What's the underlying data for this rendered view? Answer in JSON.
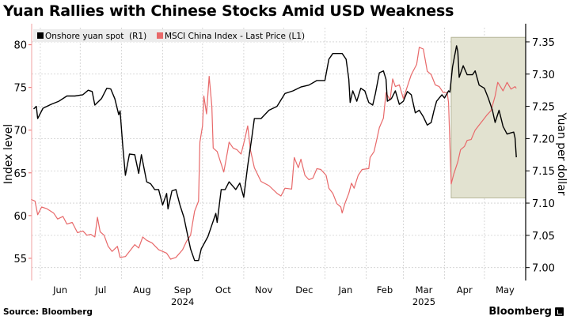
{
  "chart_data": {
    "type": "line",
    "title": "Yuan Rallies with Chinese Stocks Amid USD Weakness",
    "x_unit": "days since 2024-06-01",
    "xlim": [
      -6.5,
      365
    ],
    "y_left": {
      "label": "Index level",
      "lim": [
        52.4,
        82.0
      ],
      "ticks": [
        55,
        60,
        65,
        70,
        75,
        80
      ]
    },
    "y_right": {
      "label": "Yuan per dollar",
      "lim": [
        6.98,
        7.372
      ],
      "ticks": [
        "7.00",
        "7.05",
        "7.10",
        "7.15",
        "7.20",
        "7.25",
        "7.30",
        "7.35"
      ]
    },
    "x_ticks": [
      {
        "label": "Jun",
        "start": 0,
        "end": 30
      },
      {
        "label": "Jul",
        "start": 30,
        "end": 61
      },
      {
        "label": "Aug",
        "start": 61,
        "end": 92
      },
      {
        "label": "Sep",
        "start": 92,
        "end": 122
      },
      {
        "label": "Oct",
        "start": 122,
        "end": 153
      },
      {
        "label": "Nov",
        "start": 153,
        "end": 183
      },
      {
        "label": "Dec",
        "start": 183,
        "end": 214
      },
      {
        "label": "Jan",
        "start": 214,
        "end": 245
      },
      {
        "label": "Feb",
        "start": 245,
        "end": 273
      },
      {
        "label": "Mar",
        "start": 273,
        "end": 304
      },
      {
        "label": "Apr",
        "start": 304,
        "end": 334
      },
      {
        "label": "May",
        "start": 334,
        "end": 365
      }
    ],
    "year_labels": [
      {
        "label": "2024",
        "at": 107
      },
      {
        "label": "2025",
        "at": 288.5
      }
    ],
    "grid": true,
    "legend": {
      "placement": "top-left"
    },
    "highlight": {
      "x_from": 309,
      "x_to": 365,
      "y_right_from": 7.108,
      "y_right_to": 7.357,
      "color": "#e2e2d0"
    },
    "series": [
      {
        "name": "Onshore yuan spot  (R1)",
        "axis": "right",
        "color": "#000000",
        "points": [
          [
            -5,
            7.246
          ],
          [
            -3,
            7.25
          ],
          [
            -2,
            7.231
          ],
          [
            2,
            7.247
          ],
          [
            8,
            7.253
          ],
          [
            14,
            7.258
          ],
          [
            20,
            7.266
          ],
          [
            26,
            7.266
          ],
          [
            32,
            7.268
          ],
          [
            36,
            7.275
          ],
          [
            39,
            7.273
          ],
          [
            41,
            7.252
          ],
          [
            46,
            7.262
          ],
          [
            50,
            7.278
          ],
          [
            53,
            7.277
          ],
          [
            56,
            7.262
          ],
          [
            59,
            7.237
          ],
          [
            60,
            7.243
          ],
          [
            62,
            7.188
          ],
          [
            64,
            7.143
          ],
          [
            67,
            7.176
          ],
          [
            71,
            7.175
          ],
          [
            74,
            7.146
          ],
          [
            76,
            7.175
          ],
          [
            80,
            7.133
          ],
          [
            83,
            7.13
          ],
          [
            86,
            7.121
          ],
          [
            89,
            7.121
          ],
          [
            92,
            7.097
          ],
          [
            95,
            7.115
          ],
          [
            96,
            7.091
          ],
          [
            99,
            7.119
          ],
          [
            102,
            7.121
          ],
          [
            105,
            7.097
          ],
          [
            108,
            7.078
          ],
          [
            111,
            7.048
          ],
          [
            113,
            7.029
          ],
          [
            116,
            7.011
          ],
          [
            119,
            7.011
          ],
          [
            121,
            7.029
          ],
          [
            126,
            7.048
          ],
          [
            129,
            7.066
          ],
          [
            132,
            7.084
          ],
          [
            133,
            7.07
          ],
          [
            136,
            7.121
          ],
          [
            139,
            7.121
          ],
          [
            142,
            7.133
          ],
          [
            147,
            7.121
          ],
          [
            150,
            7.131
          ],
          [
            153,
            7.109
          ],
          [
            156,
            7.158
          ],
          [
            159,
            7.201
          ],
          [
            161,
            7.231
          ],
          [
            166,
            7.231
          ],
          [
            172,
            7.244
          ],
          [
            178,
            7.25
          ],
          [
            184,
            7.27
          ],
          [
            190,
            7.274
          ],
          [
            196,
            7.28
          ],
          [
            202,
            7.283
          ],
          [
            208,
            7.29
          ],
          [
            214,
            7.29
          ],
          [
            217,
            7.323
          ],
          [
            220,
            7.332
          ],
          [
            227,
            7.332
          ],
          [
            230,
            7.323
          ],
          [
            232,
            7.292
          ],
          [
            233,
            7.256
          ],
          [
            235,
            7.274
          ],
          [
            238,
            7.258
          ],
          [
            241,
            7.278
          ],
          [
            244,
            7.274
          ],
          [
            247,
            7.256
          ],
          [
            250,
            7.252
          ],
          [
            252,
            7.27
          ],
          [
            255,
            7.302
          ],
          [
            258,
            7.305
          ],
          [
            260,
            7.292
          ],
          [
            261,
            7.258
          ],
          [
            264,
            7.262
          ],
          [
            267,
            7.274
          ],
          [
            270,
            7.253
          ],
          [
            273,
            7.258
          ],
          [
            276,
            7.273
          ],
          [
            279,
            7.268
          ],
          [
            282,
            7.24
          ],
          [
            285,
            7.244
          ],
          [
            288,
            7.234
          ],
          [
            291,
            7.221
          ],
          [
            294,
            7.225
          ],
          [
            296,
            7.243
          ],
          [
            298,
            7.258
          ],
          [
            302,
            7.268
          ],
          [
            304,
            7.263
          ],
          [
            307,
            7.274
          ],
          [
            308,
            7.272
          ],
          [
            310,
            7.311
          ],
          [
            313,
            7.344
          ],
          [
            314,
            7.335
          ],
          [
            315,
            7.295
          ],
          [
            318,
            7.313
          ],
          [
            321,
            7.299
          ],
          [
            325,
            7.299
          ],
          [
            327,
            7.305
          ],
          [
            330,
            7.283
          ],
          [
            334,
            7.278
          ],
          [
            337,
            7.262
          ],
          [
            340,
            7.244
          ],
          [
            342,
            7.225
          ],
          [
            345,
            7.244
          ],
          [
            348,
            7.219
          ],
          [
            351,
            7.207
          ],
          [
            354,
            7.209
          ],
          [
            356,
            7.21
          ],
          [
            357,
            7.201
          ],
          [
            358,
            7.171
          ]
        ]
      },
      {
        "name": "MSCI China Index - Last Price (L1)",
        "axis": "left",
        "color": "#e8696a",
        "points": [
          [
            -7,
            61.9
          ],
          [
            -4,
            61.7
          ],
          [
            -2,
            60.1
          ],
          [
            1,
            61.0
          ],
          [
            5,
            60.8
          ],
          [
            10,
            60.3
          ],
          [
            13,
            59.6
          ],
          [
            17,
            59.9
          ],
          [
            20,
            59.0
          ],
          [
            24,
            59.2
          ],
          [
            28,
            58.0
          ],
          [
            32,
            58.2
          ],
          [
            35,
            57.7
          ],
          [
            38,
            57.8
          ],
          [
            41,
            57.5
          ],
          [
            43,
            59.8
          ],
          [
            45,
            58.1
          ],
          [
            48,
            57.7
          ],
          [
            51,
            56.4
          ],
          [
            54,
            55.8
          ],
          [
            58,
            56.4
          ],
          [
            60,
            55.1
          ],
          [
            64,
            55.2
          ],
          [
            67,
            55.8
          ],
          [
            71,
            56.6
          ],
          [
            74,
            56.2
          ],
          [
            77,
            57.5
          ],
          [
            80,
            57.1
          ],
          [
            84,
            56.8
          ],
          [
            89,
            56.0
          ],
          [
            92,
            55.8
          ],
          [
            95,
            55.6
          ],
          [
            98,
            54.9
          ],
          [
            102,
            55.1
          ],
          [
            107,
            56.0
          ],
          [
            110,
            57.0
          ],
          [
            113,
            57.7
          ],
          [
            116,
            60.5
          ],
          [
            119,
            61.7
          ],
          [
            120,
            68.6
          ],
          [
            122,
            70.5
          ],
          [
            123,
            74.0
          ],
          [
            125,
            71.9
          ],
          [
            127,
            76.3
          ],
          [
            129,
            72.8
          ],
          [
            130,
            67.9
          ],
          [
            133,
            67.5
          ],
          [
            138,
            65.1
          ],
          [
            141,
            67.7
          ],
          [
            142,
            68.6
          ],
          [
            145,
            67.9
          ],
          [
            148,
            67.7
          ],
          [
            151,
            67.2
          ],
          [
            154,
            69.1
          ],
          [
            156,
            70.5
          ],
          [
            158,
            67.7
          ],
          [
            161,
            65.6
          ],
          [
            166,
            64.0
          ],
          [
            172,
            63.5
          ],
          [
            178,
            62.6
          ],
          [
            181,
            62.3
          ],
          [
            184,
            63.2
          ],
          [
            189,
            63.1
          ],
          [
            191,
            66.8
          ],
          [
            194,
            65.6
          ],
          [
            196,
            66.6
          ],
          [
            199,
            64.7
          ],
          [
            202,
            64.2
          ],
          [
            205,
            64.4
          ],
          [
            208,
            65.5
          ],
          [
            211,
            65.4
          ],
          [
            215,
            64.7
          ],
          [
            217,
            63.2
          ],
          [
            220,
            62.6
          ],
          [
            223,
            61.4
          ],
          [
            226,
            61.0
          ],
          [
            227,
            60.3
          ],
          [
            229,
            61.4
          ],
          [
            232,
            62.6
          ],
          [
            234,
            63.8
          ],
          [
            236,
            63.2
          ],
          [
            239,
            64.7
          ],
          [
            242,
            65.4
          ],
          [
            247,
            65.5
          ],
          [
            248,
            66.8
          ],
          [
            251,
            67.5
          ],
          [
            253,
            68.9
          ],
          [
            255,
            70.3
          ],
          [
            258,
            71.4
          ],
          [
            260,
            74.4
          ],
          [
            263,
            73.5
          ],
          [
            265,
            76.0
          ],
          [
            267,
            75.1
          ],
          [
            270,
            75.3
          ],
          [
            273,
            73.7
          ],
          [
            276,
            75.1
          ],
          [
            279,
            76.5
          ],
          [
            283,
            77.7
          ],
          [
            285,
            79.7
          ],
          [
            288,
            79.5
          ],
          [
            291,
            76.9
          ],
          [
            294,
            76.5
          ],
          [
            297,
            75.3
          ],
          [
            300,
            75.1
          ],
          [
            303,
            74.4
          ],
          [
            306,
            74.4
          ],
          [
            307,
            73.2
          ],
          [
            309,
            63.7
          ],
          [
            311,
            64.9
          ],
          [
            314,
            66.3
          ],
          [
            316,
            67.7
          ],
          [
            319,
            68.1
          ],
          [
            321,
            68.8
          ],
          [
            324,
            68.9
          ],
          [
            327,
            70.0
          ],
          [
            330,
            70.6
          ],
          [
            333,
            71.2
          ],
          [
            336,
            71.8
          ],
          [
            339,
            72.3
          ],
          [
            342,
            74.0
          ],
          [
            344,
            75.6
          ],
          [
            346,
            75.1
          ],
          [
            348,
            74.6
          ],
          [
            351,
            75.6
          ],
          [
            354,
            74.8
          ],
          [
            357,
            75.1
          ],
          [
            358,
            74.9
          ]
        ]
      }
    ]
  },
  "footer": {
    "source": "Source: Bloomberg",
    "brand": "Bloomberg"
  }
}
